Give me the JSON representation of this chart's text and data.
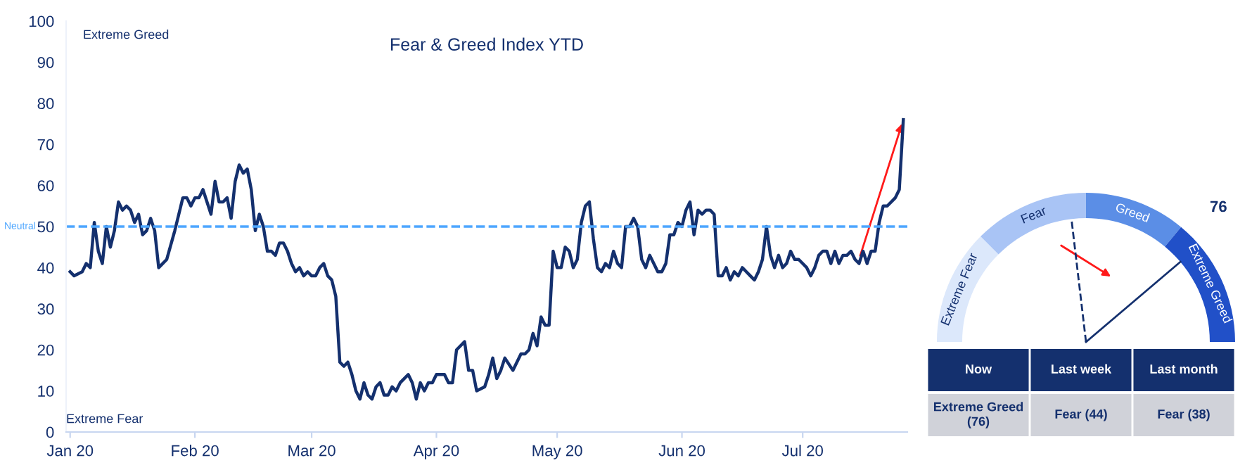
{
  "chart_data": [
    {
      "type": "line",
      "title": "Fear & Greed Index YTD",
      "series": [
        {
          "color": "#14306e",
          "x": [
            "2020-01-01",
            "2020-01-02",
            "2020-01-04",
            "2020-01-05",
            "2020-01-06",
            "2020-01-07",
            "2020-01-08",
            "2020-01-09",
            "2020-01-10",
            "2020-01-11",
            "2020-01-12",
            "2020-01-13",
            "2020-01-14",
            "2020-01-15",
            "2020-01-16",
            "2020-01-17",
            "2020-01-18",
            "2020-01-19",
            "2020-01-20",
            "2020-01-21",
            "2020-01-22",
            "2020-01-23",
            "2020-01-25",
            "2020-01-27",
            "2020-01-28",
            "2020-01-29",
            "2020-01-30",
            "2020-01-31",
            "2020-02-01",
            "2020-02-02",
            "2020-02-03",
            "2020-02-04",
            "2020-02-05",
            "2020-02-06",
            "2020-02-07",
            "2020-02-08",
            "2020-02-09",
            "2020-02-10",
            "2020-02-11",
            "2020-02-12",
            "2020-02-13",
            "2020-02-14",
            "2020-02-15",
            "2020-02-16",
            "2020-02-17",
            "2020-02-18",
            "2020-02-19",
            "2020-02-20",
            "2020-02-21",
            "2020-02-22",
            "2020-02-23",
            "2020-02-24",
            "2020-02-25",
            "2020-02-26",
            "2020-02-27",
            "2020-02-28",
            "2020-02-29",
            "2020-03-01",
            "2020-03-02",
            "2020-03-03",
            "2020-03-04",
            "2020-03-05",
            "2020-03-06",
            "2020-03-07",
            "2020-03-08",
            "2020-03-09",
            "2020-03-10",
            "2020-03-11",
            "2020-03-12",
            "2020-03-13",
            "2020-03-14",
            "2020-03-15",
            "2020-03-16",
            "2020-03-17",
            "2020-03-18",
            "2020-03-19",
            "2020-03-20",
            "2020-03-21",
            "2020-03-22",
            "2020-03-23",
            "2020-03-24",
            "2020-03-25",
            "2020-03-26",
            "2020-03-27",
            "2020-03-28",
            "2020-03-29",
            "2020-03-30",
            "2020-03-31",
            "2020-04-01",
            "2020-04-02",
            "2020-04-03",
            "2020-04-04",
            "2020-04-05",
            "2020-04-06",
            "2020-04-08",
            "2020-04-09",
            "2020-04-10",
            "2020-04-11",
            "2020-04-13",
            "2020-04-14",
            "2020-04-15",
            "2020-04-16",
            "2020-04-17",
            "2020-04-18",
            "2020-04-20",
            "2020-04-21",
            "2020-04-22",
            "2020-04-23",
            "2020-04-24",
            "2020-04-25",
            "2020-04-26",
            "2020-04-27",
            "2020-04-28",
            "2020-04-29",
            "2020-04-30",
            "2020-05-01",
            "2020-05-02",
            "2020-05-03",
            "2020-05-04",
            "2020-05-05",
            "2020-05-06",
            "2020-05-07",
            "2020-05-08",
            "2020-05-09",
            "2020-05-10",
            "2020-05-11",
            "2020-05-12",
            "2020-05-13",
            "2020-05-14",
            "2020-05-15",
            "2020-05-16",
            "2020-05-17",
            "2020-05-18",
            "2020-05-19",
            "2020-05-20",
            "2020-05-21",
            "2020-05-22",
            "2020-05-23",
            "2020-05-24",
            "2020-05-25",
            "2020-05-26",
            "2020-05-27",
            "2020-05-28",
            "2020-05-29",
            "2020-05-30",
            "2020-05-31",
            "2020-06-01",
            "2020-06-02",
            "2020-06-03",
            "2020-06-04",
            "2020-06-05",
            "2020-06-06",
            "2020-06-07",
            "2020-06-08",
            "2020-06-09",
            "2020-06-10",
            "2020-06-11",
            "2020-06-12",
            "2020-06-13",
            "2020-06-14",
            "2020-06-15",
            "2020-06-16",
            "2020-06-17",
            "2020-06-18",
            "2020-06-19",
            "2020-06-20",
            "2020-06-21",
            "2020-06-22",
            "2020-06-23",
            "2020-06-24",
            "2020-06-25",
            "2020-06-26",
            "2020-06-27",
            "2020-06-28",
            "2020-06-29",
            "2020-06-30",
            "2020-07-01",
            "2020-07-02",
            "2020-07-03",
            "2020-07-04",
            "2020-07-05",
            "2020-07-06",
            "2020-07-07",
            "2020-07-08",
            "2020-07-09",
            "2020-07-10",
            "2020-07-11",
            "2020-07-12",
            "2020-07-13",
            "2020-07-14",
            "2020-07-15",
            "2020-07-16",
            "2020-07-17",
            "2020-07-18",
            "2020-07-19",
            "2020-07-20",
            "2020-07-21",
            "2020-07-22",
            "2020-07-23",
            "2020-07-24",
            "2020-07-25",
            "2020-07-26"
          ],
          "values": [
            39,
            38,
            39,
            41,
            40,
            51,
            44,
            41,
            50,
            45,
            49,
            56,
            54,
            55,
            54,
            51,
            53,
            48,
            49,
            52,
            49,
            40,
            42,
            49,
            53,
            57,
            57,
            55,
            57,
            57,
            59,
            56,
            53,
            61,
            56,
            56,
            57,
            52,
            61,
            65,
            63,
            64,
            59,
            49,
            53,
            50,
            44,
            44,
            43,
            46,
            46,
            44,
            41,
            39,
            40,
            38,
            39,
            38,
            38,
            40,
            41,
            38,
            37,
            33,
            17,
            16,
            17,
            14,
            10,
            8,
            12,
            9,
            8,
            11,
            12,
            9,
            9,
            11,
            10,
            12,
            13,
            14,
            12,
            8,
            12,
            10,
            12,
            12,
            14,
            14,
            14,
            12,
            12,
            20,
            22,
            15,
            15,
            10,
            11,
            14,
            18,
            13,
            15,
            18,
            15,
            17,
            19,
            19,
            20,
            24,
            21,
            28,
            26,
            26,
            44,
            40,
            40,
            45,
            44,
            40,
            42,
            51,
            55,
            56,
            47,
            40,
            39,
            41,
            40,
            44,
            41,
            40,
            50,
            50,
            52,
            50,
            42,
            40,
            43,
            41,
            39,
            39,
            41,
            48,
            48,
            51,
            50,
            54,
            56,
            48,
            54,
            53,
            54,
            54,
            53,
            38,
            38,
            40,
            37,
            39,
            38,
            40,
            39,
            38,
            37,
            39,
            42,
            50,
            43,
            40,
            43,
            40,
            41,
            44,
            42,
            42,
            41,
            40,
            38,
            40,
            43,
            44,
            44,
            41,
            44,
            41,
            43,
            43,
            44,
            42,
            41,
            44,
            41,
            44,
            44,
            51,
            55,
            55,
            56,
            57,
            59,
            76
          ]
        }
      ],
      "xlim": [
        "2019-12-31",
        "2020-07-27"
      ],
      "xticks": [
        {
          "value": "2020-01-01",
          "label": "Jan 20"
        },
        {
          "value": "2020-02-01",
          "label": "Feb 20"
        },
        {
          "value": "2020-03-01",
          "label": "Mar 20"
        },
        {
          "value": "2020-04-01",
          "label": "Apr 20"
        },
        {
          "value": "2020-05-01",
          "label": "May 20"
        },
        {
          "value": "2020-06-01",
          "label": "Jun 20"
        },
        {
          "value": "2020-07-01",
          "label": "Jul 20"
        }
      ],
      "ylim": [
        0,
        100
      ],
      "yticks": [
        0,
        10,
        20,
        30,
        40,
        50,
        60,
        70,
        80,
        90,
        100
      ],
      "ref_lines": [
        {
          "axis": "y",
          "value": 50,
          "label": "Neutral",
          "color": "#4da6ff",
          "line_style": "dashed"
        }
      ],
      "annotations": [
        "Extreme Greed",
        "Extreme Fear"
      ],
      "grid": false,
      "legend": false,
      "marker": "none",
      "line_style": "solid"
    },
    {
      "type": "donut",
      "categories": [
        "Extreme Fear",
        "Fear",
        "Greed",
        "Extreme Greed"
      ],
      "values": [
        25,
        25,
        22,
        28
      ],
      "colors": [
        "#dce8fb",
        "#a9c4f5",
        "#5b8ee6",
        "#2150c8"
      ],
      "needle": "Extreme Greed",
      "annotations": [
        "76"
      ]
    },
    {
      "type": "other",
      "annotations": [
        "Now",
        "Last week",
        "Last month",
        "Extreme Greed\n(76)",
        "Fear (44)",
        "Fear (38)"
      ]
    }
  ]
}
